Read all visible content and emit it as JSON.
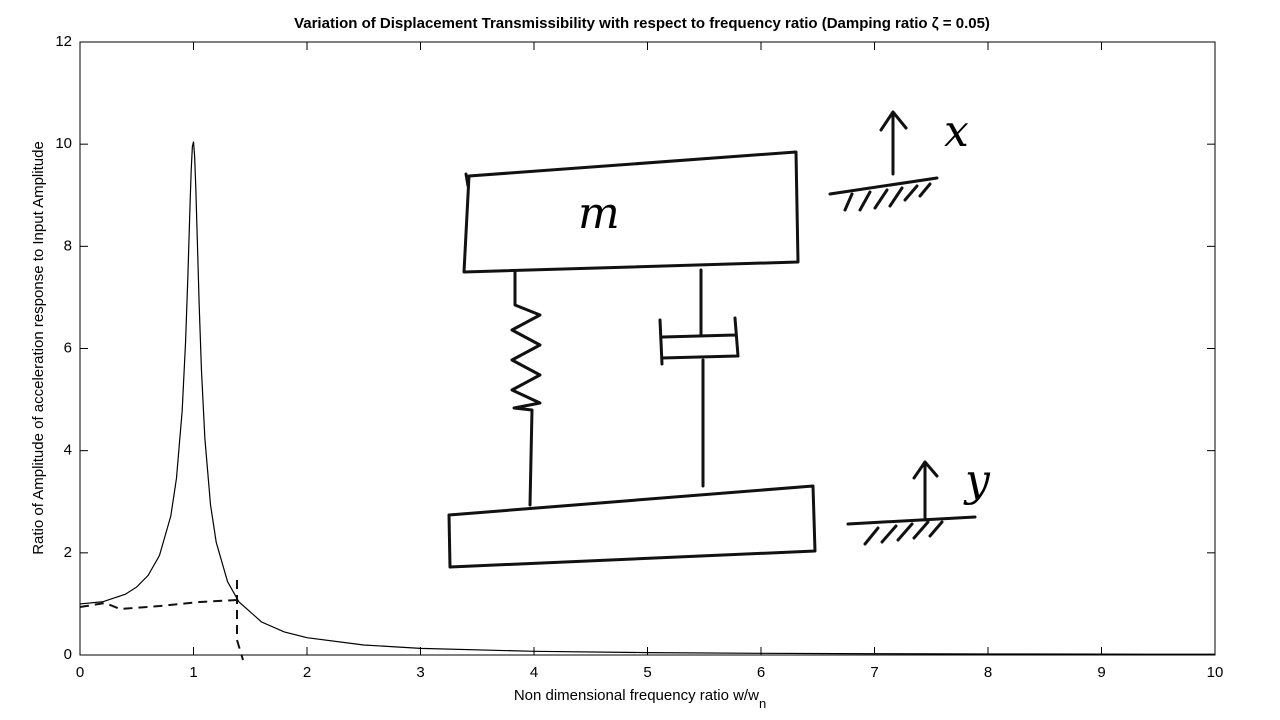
{
  "chart_data": {
    "type": "line",
    "title": "Variation of Displacement Transmissibility with respect to frequency ratio (Damping ratio ζ = 0.05)",
    "xlabel": "Non dimensional frequency ratio w/w",
    "xlabel_subscript": "n",
    "ylabel": "Ratio of Amplitude of acceleration response to Input Amplitude",
    "xlim": [
      0,
      10
    ],
    "xticks": [
      0,
      1,
      2,
      3,
      4,
      5,
      6,
      7,
      8,
      9,
      10
    ],
    "ylim": [
      0,
      12
    ],
    "yticks": [
      0,
      2,
      4,
      6,
      8,
      10,
      12
    ],
    "grid": false,
    "series": [
      {
        "color": "#000000",
        "x": [
          0,
          0.2,
          0.4,
          0.5,
          0.6,
          0.7,
          0.8,
          0.85,
          0.9,
          0.93,
          0.95,
          0.97,
          0.98,
          0.99,
          1.0,
          1.01,
          1.02,
          1.03,
          1.05,
          1.07,
          1.1,
          1.15,
          1.2,
          1.3,
          1.4,
          1.6,
          1.8,
          2,
          2.5,
          3,
          4,
          5,
          6,
          7,
          8,
          9,
          10
        ],
        "values": [
          1.0,
          1.042,
          1.19,
          1.332,
          1.558,
          1.947,
          2.72,
          3.458,
          4.776,
          6.123,
          7.379,
          8.845,
          9.506,
          9.951,
          10.05,
          9.76,
          9.162,
          8.401,
          6.853,
          5.583,
          4.244,
          2.94,
          2.208,
          1.436,
          1.041,
          0.646,
          0.452,
          0.339,
          0.196,
          0.13,
          0.072,
          0.047,
          0.033,
          0.025,
          0.02,
          0.017,
          0.014
        ]
      }
    ],
    "annotations": [
      "m",
      "x",
      "y"
    ]
  }
}
